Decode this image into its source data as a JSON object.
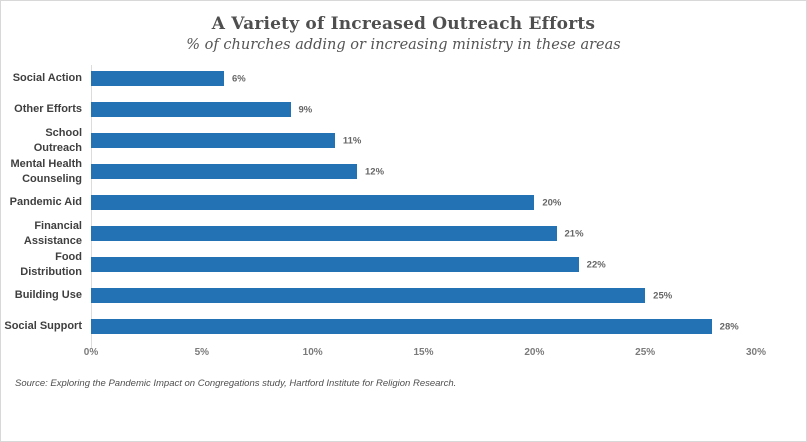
{
  "header": {
    "title": "A Variety of Increased Outreach Efforts",
    "subtitle": "% of churches adding or increasing ministry in these areas"
  },
  "chart_data": {
    "type": "bar",
    "orientation": "horizontal",
    "title": "A Variety of Increased Outreach Efforts",
    "subtitle": "% of churches adding or increasing ministry in these areas",
    "categories": [
      "Social Action",
      "Other Efforts",
      "School Outreach",
      "Mental Health Counseling",
      "Pandemic Aid",
      "Financial Assistance",
      "Food Distribution",
      "Building Use",
      "Social Support"
    ],
    "values": [
      6,
      9,
      11,
      12,
      20,
      21,
      22,
      25,
      28
    ],
    "value_labels": [
      "6%",
      "9%",
      "11%",
      "12%",
      "20%",
      "21%",
      "22%",
      "25%",
      "28%"
    ],
    "xlabel": "",
    "ylabel": "",
    "xlim": [
      0,
      30
    ],
    "x_ticks": [
      "0%",
      "5%",
      "10%",
      "15%",
      "20%",
      "25%",
      "30%"
    ],
    "grid": false,
    "legend": "none",
    "bar_color": "#2373b4"
  },
  "footer": {
    "source": "Source: Exploring the Pandemic Impact on Congregations study, Hartford Institute for Religion Research."
  },
  "colors": {
    "bar": "#2373b4",
    "title_text": "#4f4f4f",
    "category_text": "#3f3f3f",
    "value_text": "#666666",
    "axis_text": "#7b7b7b",
    "border": "#d8d8d8",
    "axis_line": "#dcdcdc"
  }
}
